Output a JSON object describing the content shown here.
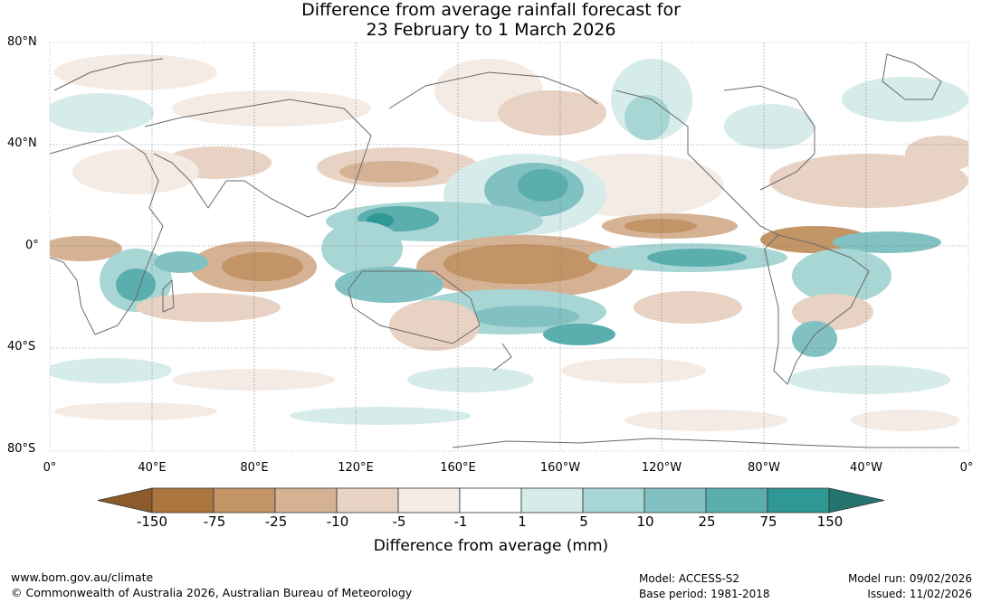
{
  "title": {
    "line1": "Difference from average rainfall forecast for",
    "line2": "23 February to 1 March 2026"
  },
  "map": {
    "lat_labels": [
      "80°N",
      "40°N",
      "0°",
      "40°S",
      "80°S"
    ],
    "lon_labels": [
      "0°",
      "40°E",
      "80°E",
      "120°E",
      "160°E",
      "160°W",
      "120°W",
      "80°W",
      "40°W",
      "0°"
    ]
  },
  "colorbar": {
    "title": "Difference from average (mm)",
    "tick_labels": [
      "-150",
      "-75",
      "-25",
      "-10",
      "-5",
      "-1",
      "1",
      "5",
      "10",
      "25",
      "75",
      "150"
    ],
    "colors": [
      "#8c5a2b",
      "#ad753e",
      "#c29466",
      "#d5b294",
      "#e7d2c3",
      "#f4ebe5",
      "#ffffff",
      "#d6ecea",
      "#a8d6d5",
      "#82c1c1",
      "#5aaeae",
      "#2f9894",
      "#23736f"
    ]
  },
  "footer": {
    "url": "www.bom.gov.au/climate",
    "copyright": "© Commonwealth of Australia 2026, Australian Bureau of Meteorology",
    "model": "Model: ACCESS-S2",
    "base_period": "Base period: 1981-2018",
    "model_run": "Model run: 09/02/2026",
    "issued": "Issued: 11/02/2026"
  }
}
